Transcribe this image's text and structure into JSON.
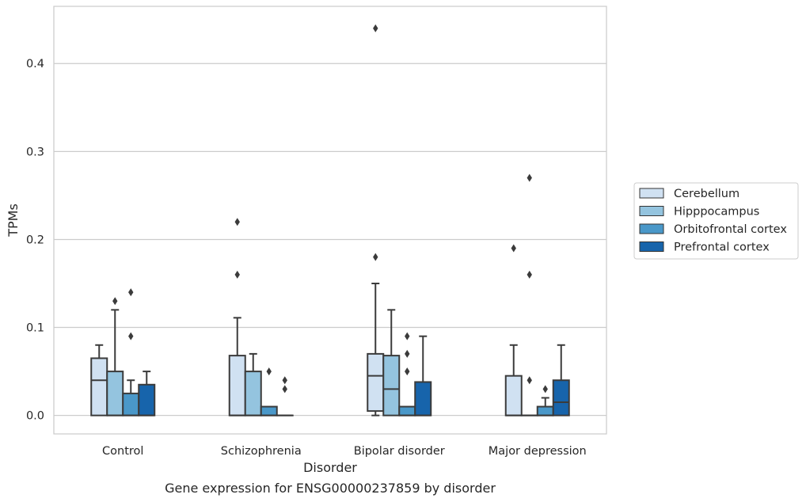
{
  "caption": "Gene expression for ENSG00000237859 by disorder",
  "chart_data": {
    "type": "box",
    "title": "",
    "xlabel": "Disorder",
    "ylabel": "TPMs",
    "ylim": [
      -0.021,
      0.465
    ],
    "yticks": [
      0.0,
      0.1,
      0.2,
      0.3,
      0.4
    ],
    "ytick_labels": [
      "0.0",
      "0.1",
      "0.2",
      "0.3",
      "0.4"
    ],
    "grid": "horizontal",
    "legend_position": "right",
    "categories": [
      "Control",
      "Schizophrenia",
      "Bipolar disorder",
      "Major depression"
    ],
    "series": [
      {
        "name": "Cerebellum",
        "color": "#d0e1f2",
        "boxes": [
          {
            "q1": 0.0,
            "median": 0.04,
            "q3": 0.065,
            "whislo": 0.0,
            "whishi": 0.08,
            "fliers": []
          },
          {
            "q1": 0.0,
            "median": 0.0,
            "q3": 0.068,
            "whislo": 0.0,
            "whishi": 0.111,
            "fliers": [
              0.16,
              0.22
            ]
          },
          {
            "q1": 0.005,
            "median": 0.045,
            "q3": 0.07,
            "whislo": 0.0,
            "whishi": 0.15,
            "fliers": [
              0.18,
              0.44
            ]
          },
          {
            "q1": 0.0,
            "median": 0.0,
            "q3": 0.045,
            "whislo": 0.0,
            "whishi": 0.08,
            "fliers": [
              0.19
            ]
          }
        ]
      },
      {
        "name": "Hipppocampus",
        "color": "#94c4df",
        "boxes": [
          {
            "q1": 0.0,
            "median": 0.0,
            "q3": 0.05,
            "whislo": 0.0,
            "whishi": 0.12,
            "fliers": [
              0.13
            ]
          },
          {
            "q1": 0.0,
            "median": 0.0,
            "q3": 0.05,
            "whislo": 0.0,
            "whishi": 0.07,
            "fliers": []
          },
          {
            "q1": 0.0,
            "median": 0.03,
            "q3": 0.068,
            "whislo": 0.0,
            "whishi": 0.12,
            "fliers": []
          },
          {
            "q1": 0.0,
            "median": 0.0,
            "q3": 0.0,
            "whislo": 0.0,
            "whishi": 0.0,
            "fliers": [
              0.04,
              0.16,
              0.27
            ]
          }
        ]
      },
      {
        "name": "Orbitofrontal cortex",
        "color": "#4a98c9",
        "boxes": [
          {
            "q1": 0.0,
            "median": 0.0,
            "q3": 0.025,
            "whislo": 0.0,
            "whishi": 0.04,
            "fliers": [
              0.09,
              0.14
            ]
          },
          {
            "q1": 0.0,
            "median": 0.0,
            "q3": 0.01,
            "whislo": 0.0,
            "whishi": 0.01,
            "fliers": [
              0.05
            ]
          },
          {
            "q1": 0.0,
            "median": 0.0,
            "q3": 0.01,
            "whislo": 0.0,
            "whishi": 0.01,
            "fliers": [
              0.05,
              0.07,
              0.09
            ]
          },
          {
            "q1": 0.0,
            "median": 0.0,
            "q3": 0.01,
            "whislo": 0.0,
            "whishi": 0.02,
            "fliers": [
              0.03
            ]
          }
        ]
      },
      {
        "name": "Prefrontal cortex",
        "color": "#1764ab",
        "boxes": [
          {
            "q1": 0.0,
            "median": 0.0,
            "q3": 0.035,
            "whislo": 0.0,
            "whishi": 0.05,
            "fliers": []
          },
          {
            "q1": 0.0,
            "median": 0.0,
            "q3": 0.0,
            "whislo": 0.0,
            "whishi": 0.0,
            "fliers": [
              0.03,
              0.04
            ]
          },
          {
            "q1": 0.0,
            "median": 0.0,
            "q3": 0.038,
            "whislo": 0.0,
            "whishi": 0.09,
            "fliers": []
          },
          {
            "q1": 0.0,
            "median": 0.015,
            "q3": 0.04,
            "whislo": 0.0,
            "whishi": 0.08,
            "fliers": []
          }
        ]
      }
    ]
  }
}
